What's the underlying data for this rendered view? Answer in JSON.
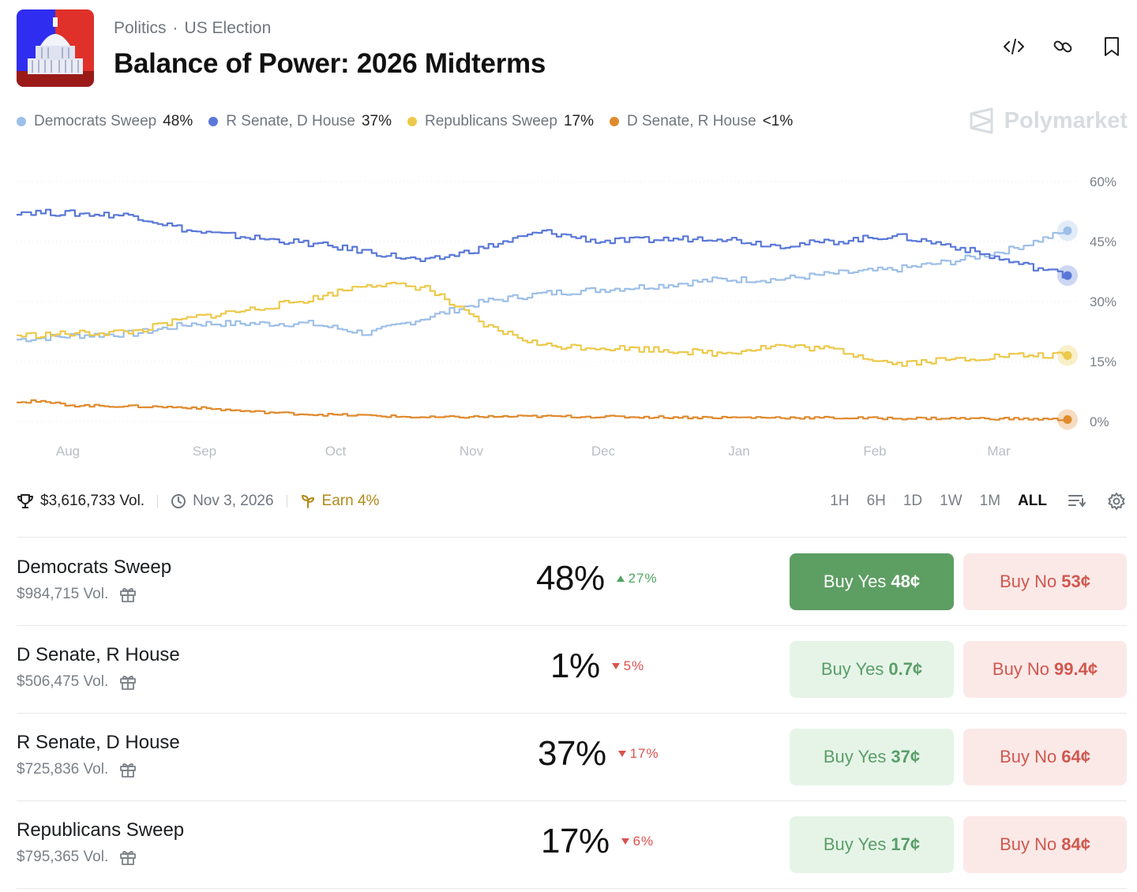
{
  "header": {
    "breadcrumb": [
      "Politics",
      "US Election"
    ],
    "title": "Balance of Power: 2026 Midterms"
  },
  "header_icons": [
    "embed-code-icon",
    "link-icon",
    "bookmark-icon"
  ],
  "legend": [
    {
      "name": "Democrats Sweep",
      "value": "48%",
      "color": "#9dbfe8"
    },
    {
      "name": "R Senate, D House",
      "value": "37%",
      "color": "#5a78d8"
    },
    {
      "name": "Republicans Sweep",
      "value": "17%",
      "color": "#ecc94b"
    },
    {
      "name": "D Senate, R House",
      "value": "<1%",
      "color": "#e08a2e"
    }
  ],
  "brand": "Polymarket",
  "chart_data": {
    "type": "line",
    "x_ticks": [
      "Aug",
      "Sep",
      "Oct",
      "Nov",
      "Dec",
      "Jan",
      "Feb",
      "Mar"
    ],
    "y_ticks": [
      "0%",
      "15%",
      "30%",
      "45%",
      "60%"
    ],
    "ylim": [
      0,
      60
    ],
    "grid": true,
    "x": [
      "Jul 23",
      "Aug 10",
      "Aug 25",
      "Sep 10",
      "Sep 25",
      "Oct 10",
      "Oct 25",
      "Nov 1",
      "Nov 10",
      "Nov 25",
      "Dec 5",
      "Dec 20",
      "Jan 5",
      "Jan 20",
      "Feb 5",
      "Feb 20",
      "Mar 1",
      "Mar 10",
      "Mar 18"
    ],
    "series": [
      {
        "name": "Democrats Sweep",
        "color": "#9dbfe8",
        "values": [
          20.5,
          21.5,
          22,
          24.5,
          24.5,
          24.5,
          22,
          26,
          30,
          32,
          33,
          34,
          35.5,
          35.5,
          37,
          38,
          40,
          43,
          47.7
        ]
      },
      {
        "name": "R Senate, D House",
        "color": "#5a78d8",
        "values": [
          52.5,
          52,
          51.5,
          47.5,
          46,
          44.5,
          42.5,
          40,
          43.5,
          47.5,
          45,
          45.5,
          46,
          44,
          45,
          46.5,
          44,
          40,
          36.5
        ]
      },
      {
        "name": "Republicans Sweep",
        "color": "#ecc94b",
        "values": [
          21.5,
          22,
          22.5,
          26,
          28,
          30.5,
          34.5,
          33.5,
          24,
          19,
          18.5,
          18,
          17,
          19,
          18,
          14.5,
          15.5,
          16.5,
          16.5
        ]
      },
      {
        "name": "D Senate, R House",
        "color": "#e08a2e",
        "values": [
          5.5,
          4,
          3.8,
          3.5,
          2.5,
          1.8,
          1.5,
          1,
          1.2,
          1.3,
          1.2,
          1.1,
          1,
          1,
          0.9,
          0.8,
          0.8,
          0.7,
          0.5
        ]
      }
    ]
  },
  "meta": {
    "volume": "$3,616,733 Vol.",
    "date": "Nov 3, 2026",
    "earn": "Earn 4%"
  },
  "ranges": [
    {
      "label": "1H",
      "active": false
    },
    {
      "label": "6H",
      "active": false
    },
    {
      "label": "1D",
      "active": false
    },
    {
      "label": "1W",
      "active": false
    },
    {
      "label": "1M",
      "active": false
    },
    {
      "label": "ALL",
      "active": true
    }
  ],
  "outcomes": [
    {
      "name": "Democrats Sweep",
      "volume": "$984,715 Vol.",
      "pct": "48%",
      "change": "27%",
      "dir": "up",
      "yes_label": "Buy Yes",
      "yes_price": "48¢",
      "no_label": "Buy No",
      "no_price": "53¢"
    },
    {
      "name": "D Senate, R House",
      "volume": "$506,475 Vol.",
      "pct": "1%",
      "change": "5%",
      "dir": "down",
      "yes_label": "Buy Yes",
      "yes_price": "0.7¢",
      "no_label": "Buy No",
      "no_price": "99.4¢"
    },
    {
      "name": "R Senate, D House",
      "volume": "$725,836 Vol.",
      "pct": "37%",
      "change": "17%",
      "dir": "down",
      "yes_label": "Buy Yes",
      "yes_price": "37¢",
      "no_label": "Buy No",
      "no_price": "64¢"
    },
    {
      "name": "Republicans Sweep",
      "volume": "$795,365 Vol.",
      "pct": "17%",
      "change": "6%",
      "dir": "down",
      "yes_label": "Buy Yes",
      "yes_price": "17¢",
      "no_label": "Buy No",
      "no_price": "84¢"
    }
  ]
}
